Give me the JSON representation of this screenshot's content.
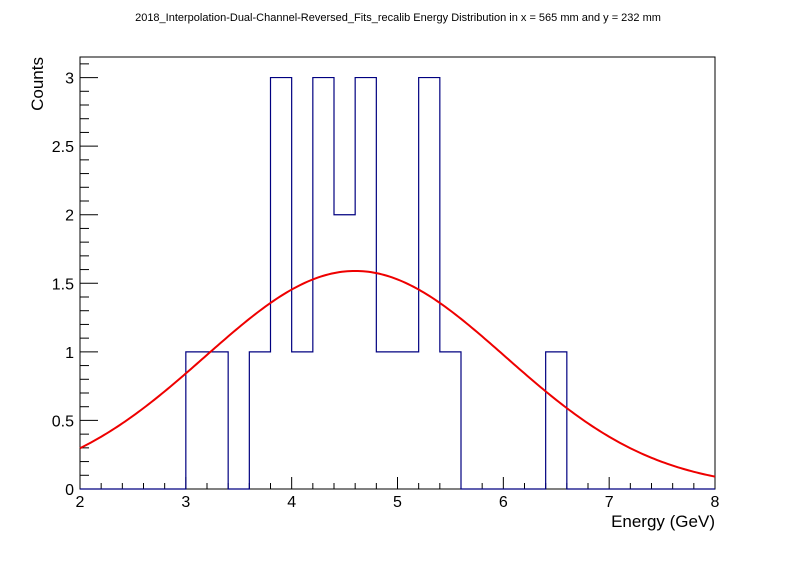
{
  "chart_data": {
    "type": "histogram",
    "title": "2018_Interpolation-Dual-Channel-Reversed_Fits_recalib Energy Distribution in x = 565 mm and y = 232 mm",
    "xlabel": "Energy (GeV)",
    "ylabel": "Counts",
    "xlim": [
      2,
      8
    ],
    "ylim": [
      0,
      3.15
    ],
    "grid": false,
    "x_ticks": [
      "2",
      "3",
      "4",
      "5",
      "6",
      "7",
      "8"
    ],
    "y_ticks": [
      "0",
      "0.5",
      "1",
      "1.5",
      "2",
      "2.5",
      "3"
    ],
    "bin_edges": [
      2.0,
      2.2,
      2.4,
      2.6,
      2.8,
      3.0,
      3.2,
      3.4,
      3.6,
      3.8,
      4.0,
      4.2,
      4.4,
      4.6,
      4.8,
      5.0,
      5.2,
      5.4,
      5.6,
      5.8,
      6.0,
      6.2,
      6.4,
      6.6,
      6.8,
      7.0,
      7.2,
      7.4,
      7.6,
      7.8,
      8.0
    ],
    "counts": [
      0,
      0,
      0,
      0,
      0,
      1,
      1,
      0,
      1,
      3,
      1,
      3,
      2,
      3,
      1,
      1,
      3,
      1,
      0,
      0,
      0,
      0,
      1,
      0,
      0,
      0,
      0,
      0,
      0,
      0
    ],
    "histogram_color": "#000080",
    "fit": {
      "type": "gaussian",
      "amplitude": 1.59,
      "mean": 4.6,
      "sigma": 1.42,
      "color": "#ee0000"
    }
  }
}
